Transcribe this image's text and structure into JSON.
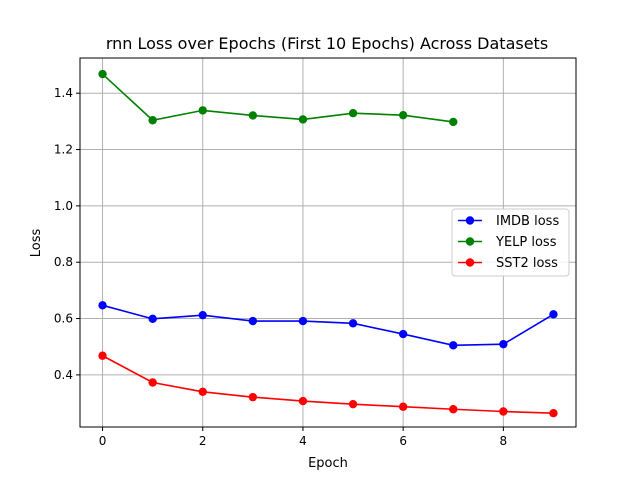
{
  "chart_data": {
    "type": "line",
    "title": "rnn Loss over Epochs (First 10 Epochs) Across Datasets",
    "xlabel": "Epoch",
    "ylabel": "Loss",
    "xlim": [
      -0.45,
      9.45
    ],
    "ylim": [
      0.215,
      1.525
    ],
    "x_ticks": [
      0,
      2,
      4,
      6,
      8
    ],
    "y_ticks": [
      0.4,
      0.6,
      0.8,
      1.0,
      1.2,
      1.4
    ],
    "grid": true,
    "legend_position": "center-right",
    "series": [
      {
        "name": "IMDB loss",
        "color": "#0000ff",
        "x": [
          0,
          1,
          2,
          3,
          4,
          5,
          6,
          7,
          8,
          9
        ],
        "values": [
          0.647,
          0.599,
          0.612,
          0.591,
          0.591,
          0.583,
          0.545,
          0.505,
          0.509,
          0.615
        ]
      },
      {
        "name": "YELP loss",
        "color": "#008000",
        "x": [
          0,
          1,
          2,
          3,
          4,
          5,
          6,
          7
        ],
        "values": [
          1.468,
          1.304,
          1.339,
          1.321,
          1.307,
          1.329,
          1.322,
          1.298
        ]
      },
      {
        "name": "SST2 loss",
        "color": "#ff0000",
        "x": [
          0,
          1,
          2,
          3,
          4,
          5,
          6,
          7,
          8,
          9
        ],
        "values": [
          0.468,
          0.373,
          0.34,
          0.321,
          0.307,
          0.296,
          0.287,
          0.278,
          0.27,
          0.264
        ]
      }
    ]
  }
}
